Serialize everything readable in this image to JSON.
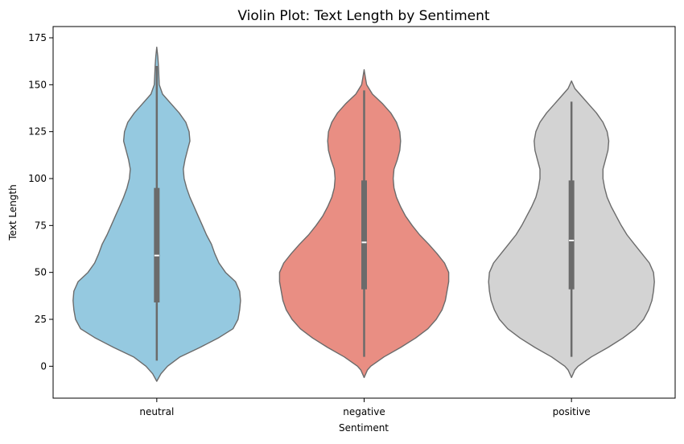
{
  "chart_data": {
    "type": "violin",
    "title": "Violin Plot: Text Length by Sentiment",
    "xlabel": "Sentiment",
    "ylabel": "Text Length",
    "ylim": [
      -17,
      181
    ],
    "yticks": [
      0,
      25,
      50,
      75,
      100,
      125,
      150,
      175
    ],
    "grid": false,
    "categories": [
      "neutral",
      "negative",
      "positive"
    ],
    "colors": [
      "#95c9e0",
      "#e98e83",
      "#d3d3d3"
    ],
    "edge_color": "#6b6b6b",
    "violins": [
      {
        "category": "neutral",
        "min": 3,
        "q1": 34,
        "median": 59,
        "q3": 95,
        "max": 160,
        "profile": [
          [
            -8,
            0.0
          ],
          [
            -4,
            0.05
          ],
          [
            0,
            0.13
          ],
          [
            5,
            0.28
          ],
          [
            10,
            0.52
          ],
          [
            15,
            0.74
          ],
          [
            20,
            0.92
          ],
          [
            25,
            0.98
          ],
          [
            30,
            1.0
          ],
          [
            35,
            1.01
          ],
          [
            40,
            1.0
          ],
          [
            45,
            0.95
          ],
          [
            50,
            0.83
          ],
          [
            55,
            0.75
          ],
          [
            60,
            0.7
          ],
          [
            65,
            0.66
          ],
          [
            70,
            0.6
          ],
          [
            75,
            0.55
          ],
          [
            80,
            0.5
          ],
          [
            85,
            0.45
          ],
          [
            90,
            0.4
          ],
          [
            95,
            0.36
          ],
          [
            100,
            0.33
          ],
          [
            105,
            0.32
          ],
          [
            110,
            0.34
          ],
          [
            115,
            0.37
          ],
          [
            120,
            0.4
          ],
          [
            125,
            0.39
          ],
          [
            130,
            0.35
          ],
          [
            135,
            0.27
          ],
          [
            140,
            0.17
          ],
          [
            145,
            0.07
          ],
          [
            150,
            0.03
          ],
          [
            155,
            0.025
          ],
          [
            160,
            0.02
          ],
          [
            165,
            0.012
          ],
          [
            170,
            0.0
          ]
        ]
      },
      {
        "category": "negative",
        "min": 5,
        "q1": 41,
        "median": 66,
        "q3": 99,
        "max": 147,
        "profile": [
          [
            -6,
            0.0
          ],
          [
            -2,
            0.04
          ],
          [
            0,
            0.08
          ],
          [
            5,
            0.24
          ],
          [
            10,
            0.44
          ],
          [
            15,
            0.62
          ],
          [
            20,
            0.77
          ],
          [
            25,
            0.87
          ],
          [
            30,
            0.94
          ],
          [
            35,
            0.98
          ],
          [
            40,
            1.0
          ],
          [
            45,
            1.02
          ],
          [
            50,
            1.02
          ],
          [
            55,
            0.97
          ],
          [
            60,
            0.88
          ],
          [
            65,
            0.78
          ],
          [
            70,
            0.67
          ],
          [
            75,
            0.58
          ],
          [
            80,
            0.5
          ],
          [
            85,
            0.44
          ],
          [
            90,
            0.39
          ],
          [
            95,
            0.36
          ],
          [
            100,
            0.35
          ],
          [
            105,
            0.36
          ],
          [
            110,
            0.4
          ],
          [
            115,
            0.43
          ],
          [
            120,
            0.44
          ],
          [
            125,
            0.43
          ],
          [
            130,
            0.39
          ],
          [
            135,
            0.32
          ],
          [
            140,
            0.22
          ],
          [
            145,
            0.1
          ],
          [
            150,
            0.03
          ],
          [
            154,
            0.015
          ],
          [
            158,
            0.0
          ]
        ]
      },
      {
        "category": "positive",
        "min": 5,
        "q1": 41,
        "median": 67,
        "q3": 99,
        "max": 141,
        "profile": [
          [
            -6,
            0.0
          ],
          [
            -2,
            0.04
          ],
          [
            0,
            0.08
          ],
          [
            5,
            0.24
          ],
          [
            10,
            0.44
          ],
          [
            15,
            0.62
          ],
          [
            20,
            0.77
          ],
          [
            25,
            0.87
          ],
          [
            30,
            0.93
          ],
          [
            35,
            0.97
          ],
          [
            40,
            0.99
          ],
          [
            45,
            1.0
          ],
          [
            50,
            0.99
          ],
          [
            55,
            0.94
          ],
          [
            60,
            0.85
          ],
          [
            65,
            0.76
          ],
          [
            70,
            0.67
          ],
          [
            75,
            0.6
          ],
          [
            80,
            0.54
          ],
          [
            85,
            0.48
          ],
          [
            90,
            0.43
          ],
          [
            95,
            0.4
          ],
          [
            100,
            0.38
          ],
          [
            105,
            0.38
          ],
          [
            110,
            0.41
          ],
          [
            115,
            0.44
          ],
          [
            120,
            0.45
          ],
          [
            125,
            0.43
          ],
          [
            130,
            0.38
          ],
          [
            135,
            0.3
          ],
          [
            140,
            0.2
          ],
          [
            145,
            0.1
          ],
          [
            148,
            0.04
          ],
          [
            152,
            0.0
          ]
        ]
      }
    ]
  }
}
